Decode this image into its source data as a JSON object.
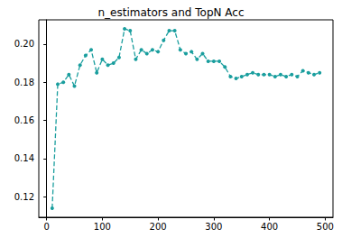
{
  "chart_data": {
    "type": "line",
    "title": "n_estimators and TopN Acc",
    "x": [
      10,
      20,
      30,
      40,
      50,
      60,
      70,
      80,
      90,
      100,
      110,
      120,
      130,
      140,
      150,
      160,
      170,
      180,
      190,
      200,
      210,
      220,
      230,
      240,
      250,
      260,
      270,
      280,
      290,
      300,
      310,
      320,
      330,
      340,
      350,
      360,
      370,
      380,
      390,
      400,
      410,
      420,
      430,
      440,
      450,
      460,
      470,
      480,
      490
    ],
    "values": [
      0.114,
      0.179,
      0.18,
      0.184,
      0.178,
      0.189,
      0.194,
      0.197,
      0.185,
      0.192,
      0.189,
      0.19,
      0.193,
      0.208,
      0.207,
      0.192,
      0.197,
      0.195,
      0.197,
      0.196,
      0.202,
      0.207,
      0.207,
      0.197,
      0.195,
      0.196,
      0.192,
      0.195,
      0.191,
      0.191,
      0.191,
      0.188,
      0.183,
      0.182,
      0.183,
      0.184,
      0.185,
      0.184,
      0.184,
      0.184,
      0.183,
      0.184,
      0.183,
      0.184,
      0.183,
      0.186,
      0.185,
      0.184,
      0.185
    ],
    "color": "#1a9e9e",
    "marker": "o",
    "line_style": "dashed",
    "xlim": [
      -14,
      514
    ],
    "xticks": [
      0,
      100,
      200,
      300,
      400,
      500
    ],
    "ylim": [
      0.1093,
      0.2127
    ],
    "yticks": [
      0.12,
      0.14,
      0.16,
      0.18,
      {
        "value": 0.2,
        "label": "0.20"
      }
    ],
    "grid": false
  }
}
